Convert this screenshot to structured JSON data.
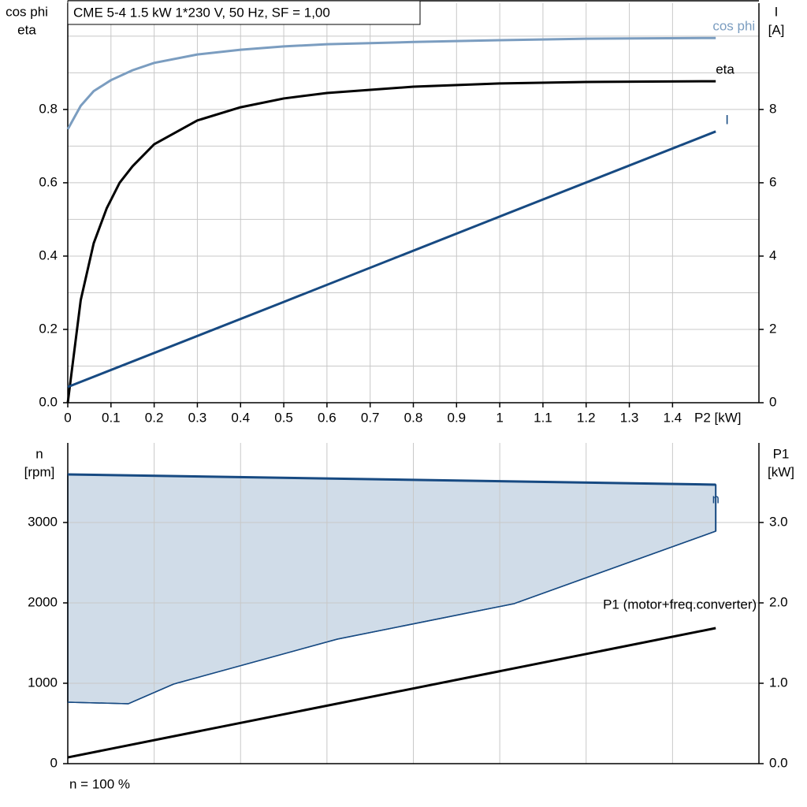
{
  "chart_data": [
    {
      "type": "line",
      "title": "CME 5-4   1.5 kW   1*230 V, 50 Hz, SF = 1,00",
      "ylabel": [
        "cos phi",
        "eta"
      ],
      "y2label": [
        "I",
        "[A]"
      ],
      "xlabel": "P2 [kW]",
      "xlim": [
        0,
        1.6
      ],
      "xticks": [
        0,
        0.1,
        0.2,
        0.3,
        0.4,
        0.5,
        0.6,
        0.7,
        0.8,
        0.9,
        1.0,
        1.1,
        1.2,
        1.3,
        1.4
      ],
      "ylim": [
        0,
        1.09
      ],
      "yticks": [
        {
          "value": 0,
          "label": "0.0"
        },
        0.2,
        0.4,
        0.6,
        0.8
      ],
      "y_grid": [
        0.1,
        0.2,
        0.3,
        0.4,
        0.5,
        0.6,
        0.7,
        0.8,
        0.9,
        1.0
      ],
      "y2lim": [
        0,
        10.9
      ],
      "y2ticks": [
        0,
        2,
        4,
        6,
        8
      ],
      "grid": true,
      "series": [
        {
          "name": "cos phi",
          "color": "#7b9dc0",
          "x": [
            0,
            0.03,
            0.06,
            0.1,
            0.15,
            0.2,
            0.3,
            0.4,
            0.5,
            0.6,
            0.8,
            1.0,
            1.2,
            1.5
          ],
          "values": [
            0.746,
            0.81,
            0.85,
            0.88,
            0.907,
            0.927,
            0.95,
            0.963,
            0.972,
            0.978,
            0.984,
            0.989,
            0.993,
            0.995
          ]
        },
        {
          "name": "eta",
          "color": "#000000",
          "x": [
            0,
            0.03,
            0.06,
            0.09,
            0.12,
            0.15,
            0.2,
            0.3,
            0.4,
            0.5,
            0.6,
            0.8,
            1.0,
            1.2,
            1.5
          ],
          "values": [
            0,
            0.28,
            0.435,
            0.53,
            0.6,
            0.645,
            0.705,
            0.77,
            0.806,
            0.83,
            0.845,
            0.862,
            0.871,
            0.875,
            0.877
          ]
        },
        {
          "name": "I",
          "color": "#174a82",
          "axis": "y2",
          "x": [
            0,
            0.5,
            1.0,
            1.5
          ],
          "values": [
            0.43,
            2.75,
            5.08,
            7.4
          ]
        }
      ]
    },
    {
      "type": "line",
      "ylabel": [
        "n",
        "[rpm]"
      ],
      "y2label": [
        "P1",
        "[kW]"
      ],
      "annotation": "n = 100 %",
      "xlim": [
        0,
        1.6
      ],
      "x_grid": [
        0.2,
        0.4,
        0.6,
        0.8,
        1.0,
        1.2,
        1.4
      ],
      "ylim": [
        0,
        3990
      ],
      "yticks": [
        0,
        1000,
        2000,
        3000
      ],
      "y2lim": [
        0,
        3.99
      ],
      "y2ticks": [
        {
          "value": 0,
          "label": "0.0"
        },
        {
          "value": 1,
          "label": "1.0"
        },
        {
          "value": 2,
          "label": "2.0"
        },
        {
          "value": 3,
          "label": "3.0"
        }
      ],
      "grid": true,
      "fill_between": true,
      "fill_color": "#d0dce8",
      "series": [
        {
          "name": "n",
          "color": "#174a82",
          "x": [
            0,
            1.5
          ],
          "values": [
            3598,
            3471
          ]
        },
        {
          "color": "#174a82",
          "x": [
            0,
            0.14,
            0.245,
            0.624,
            1.033,
            1.5
          ],
          "values": [
            765,
            745,
            990,
            1549,
            1990,
            2892
          ]
        },
        {
          "name": "P1 (motor+freq.converter)",
          "color": "#000000",
          "axis": "y2",
          "x": [
            0,
            1.5
          ],
          "values": [
            0.078,
            1.686
          ]
        }
      ]
    }
  ]
}
